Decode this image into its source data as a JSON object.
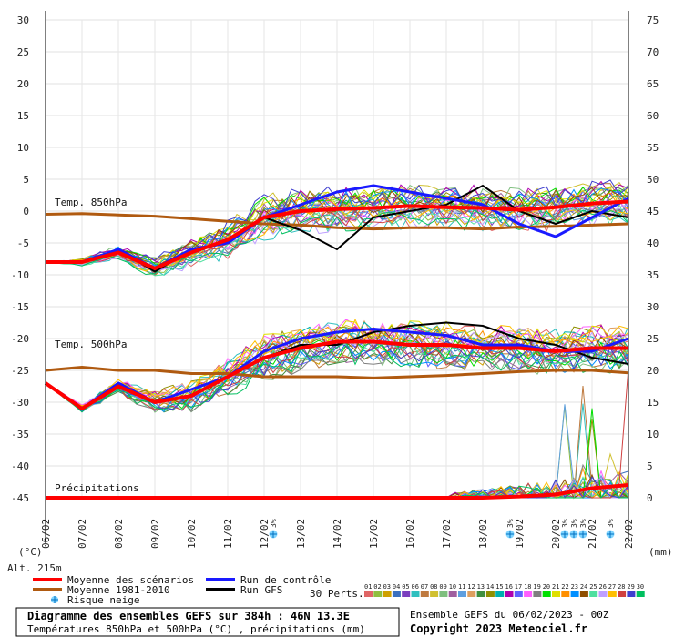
{
  "chart_data": {
    "type": "line",
    "title": "Diagramme des ensembles GEFS sur 384h : 46N 13.3E",
    "subtitle": "Températures 850hPa et 500hPa (°C) , précipitations (mm)",
    "run_info": "Ensemble GEFS du 06/02/2023 - 00Z",
    "copyright": "Copyright 2023 Meteociel.fr",
    "altitude_label": "Alt. 215m",
    "left_axis_unit": "(°C)",
    "right_axis_unit": "(mm)",
    "left_ticks": [
      30,
      25,
      20,
      15,
      10,
      5,
      0,
      -5,
      -10,
      -15,
      -20,
      -25,
      -30,
      -35,
      -40,
      -45
    ],
    "right_ticks": [
      75,
      70,
      65,
      60,
      55,
      50,
      45,
      40,
      35,
      30,
      25,
      20,
      15,
      10,
      5,
      0
    ],
    "x_labels": [
      "06/02",
      "07/02",
      "08/02",
      "09/02",
      "10/02",
      "11/02",
      "12/02",
      "13/02",
      "14/02",
      "15/02",
      "16/02",
      "17/02",
      "18/02",
      "19/02",
      "20/02",
      "21/02",
      "22/02"
    ],
    "panel_labels": {
      "t850": "Temp. 850hPa",
      "t500": "Temp. 500hPa",
      "precip": "Précipitations"
    },
    "legend": {
      "mean": "Moyenne des scénarios",
      "climo": "Moyenne 1981-2010",
      "snow": "Risque neige",
      "control": "Run de contrôle",
      "gfs": "Run GFS",
      "perts": "30 Perts."
    },
    "series_colors": {
      "mean": "#ff0000",
      "climo": "#b05a10",
      "control": "#1a1aff",
      "gfs": "#000000"
    },
    "snow_risk": [
      {
        "x": 6.25,
        "label": "3%"
      },
      {
        "x": 12.75,
        "label": "3%"
      },
      {
        "x": 14.25,
        "label": "3%"
      },
      {
        "x": 14.5,
        "label": "3%"
      },
      {
        "x": 14.75,
        "label": "3%"
      },
      {
        "x": 15.5,
        "label": "3%"
      }
    ],
    "perturbations": [
      {
        "label": "01",
        "color": "#e06666"
      },
      {
        "label": "02",
        "color": "#8fbf3f"
      },
      {
        "label": "03",
        "color": "#cfa000"
      },
      {
        "label": "04",
        "color": "#3a6fbf"
      },
      {
        "label": "05",
        "color": "#7a3fbf"
      },
      {
        "label": "06",
        "color": "#2fbfbf"
      },
      {
        "label": "07",
        "color": "#bf7a3f"
      },
      {
        "label": "08",
        "color": "#d0c030"
      },
      {
        "label": "09",
        "color": "#7fbf7f"
      },
      {
        "label": "10",
        "color": "#9f5f9f"
      },
      {
        "label": "11",
        "color": "#5f9fdf"
      },
      {
        "label": "12",
        "color": "#df9f5f"
      },
      {
        "label": "13",
        "color": "#3f8f3f"
      },
      {
        "label": "14",
        "color": "#8f8f00"
      },
      {
        "label": "15",
        "color": "#00afaf"
      },
      {
        "label": "16",
        "color": "#af00af"
      },
      {
        "label": "17",
        "color": "#5f5fff"
      },
      {
        "label": "18",
        "color": "#ff5fff"
      },
      {
        "label": "19",
        "color": "#7f7f7f"
      },
      {
        "label": "20",
        "color": "#00df00"
      },
      {
        "label": "21",
        "color": "#dfdf00"
      },
      {
        "label": "22",
        "color": "#ff8f00"
      },
      {
        "label": "23",
        "color": "#008fff"
      },
      {
        "label": "24",
        "color": "#8f4f00"
      },
      {
        "label": "25",
        "color": "#4fdf9f"
      },
      {
        "label": "26",
        "color": "#bf9fff"
      },
      {
        "label": "27",
        "color": "#ffbf00"
      },
      {
        "label": "28",
        "color": "#cf3f3f"
      },
      {
        "label": "29",
        "color": "#3f3fcf"
      },
      {
        "label": "30",
        "color": "#00bf5f"
      }
    ],
    "t850": {
      "mean": [
        -8,
        -8,
        -6.5,
        -9,
        -6.5,
        -4.5,
        -1,
        0,
        0.3,
        0.5,
        0.8,
        0.6,
        0.5,
        0.2,
        0.6,
        1.2,
        1.5,
        1.8
      ],
      "climo": [
        -0.5,
        -0.4,
        -0.6,
        -0.8,
        -1.2,
        -1.6,
        -2.0,
        -2.2,
        -2.6,
        -2.8,
        -2.6,
        -2.6,
        -2.8,
        -2.5,
        -2.4,
        -2.2,
        -2.0,
        -1.8
      ],
      "control": [
        -8,
        -8,
        -6,
        -9,
        -6,
        -5,
        -1,
        1,
        3,
        4,
        3,
        2,
        1,
        -2,
        -4,
        -1,
        2,
        3
      ],
      "gfs": [
        -8,
        -8,
        -6,
        -9.5,
        -6,
        -5,
        -1,
        -3,
        -6,
        -1,
        0,
        1,
        4,
        0,
        -2,
        0,
        -1,
        -3
      ]
    },
    "t500": {
      "mean": [
        -27,
        -31,
        -27.5,
        -30,
        -29,
        -26,
        -23,
        -21.5,
        -20.5,
        -20.5,
        -21,
        -21,
        -21.5,
        -21.5,
        -22,
        -21.5,
        -21.5,
        -22.5
      ],
      "climo": [
        -25,
        -24.5,
        -25,
        -25,
        -25.5,
        -25.5,
        -26,
        -26,
        -26,
        -26.2,
        -26,
        -25.8,
        -25.5,
        -25.2,
        -25,
        -25,
        -25.4,
        -25.7
      ],
      "control": [
        -27,
        -31,
        -27,
        -30,
        -28,
        -26,
        -22,
        -20,
        -19,
        -18.5,
        -19,
        -19.5,
        -21,
        -21,
        -22,
        -22,
        -20,
        -21
      ],
      "gfs": [
        -27,
        -31,
        -27,
        -30,
        -28,
        -26,
        -23,
        -21,
        -21,
        -19,
        -18,
        -17.5,
        -18,
        -20,
        -21,
        -23,
        -24,
        -25
      ]
    },
    "precip": {
      "mean": [
        0,
        0,
        0,
        0,
        0,
        0,
        0,
        0,
        0,
        0,
        0,
        0,
        0,
        0.2,
        0.5,
        1.5,
        2.0,
        0.5
      ]
    }
  }
}
